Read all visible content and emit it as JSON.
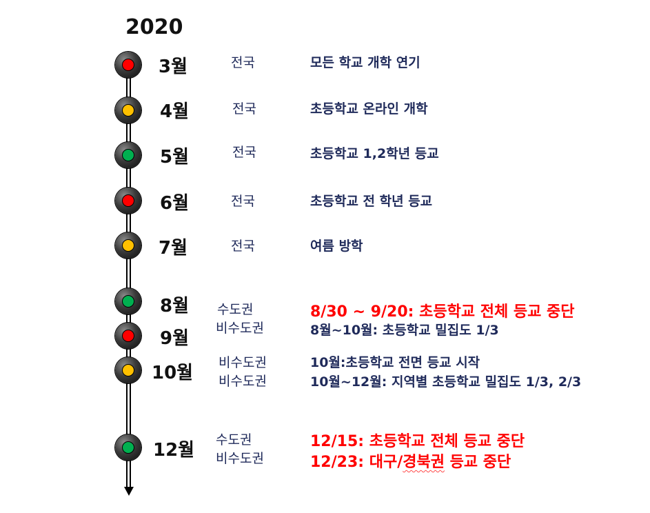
{
  "title": "2020",
  "marker_colors": {
    "red": "#ff0000",
    "yellow": "#ffc000",
    "green": "#00b050"
  },
  "axis": {
    "arrow_icon": "down-arrow-icon"
  },
  "months": [
    {
      "label": "3월",
      "light": "red"
    },
    {
      "label": "4월",
      "light": "yellow"
    },
    {
      "label": "5월",
      "light": "green"
    },
    {
      "label": "6월",
      "light": "red"
    },
    {
      "label": "7월",
      "light": "yellow"
    },
    {
      "label": "8월",
      "light": "green"
    },
    {
      "label": "9월",
      "light": "red"
    },
    {
      "label": "10월",
      "light": "yellow"
    },
    {
      "label": "12월",
      "light": "green"
    }
  ],
  "regions": [
    "전국",
    "전국",
    "전국",
    "전국",
    "전국",
    "수도권",
    "비수도권",
    "비수도권",
    "비수도권",
    "수도권",
    "비수도권"
  ],
  "descriptions": [
    "모든 학교 개학 연기",
    "초등학교 온라인 개학",
    "초등학교 1,2학년 등교",
    "초등학교 전 학년 등교",
    "여름 방학",
    "8/30 ~ 9/20: 초등학교 전체 등교 중단",
    "8월~10월: 초등학교 밀집도 1/3",
    "10월:초등학교 전면 등교 시작",
    "10월~12월: 지역별 초등학교 밀집도 1/3, 2/3",
    "12/15: 초등학교 전체 등교 중단"
  ],
  "last_description": {
    "prefix": "12/23: 대구/",
    "underlined": "경북권",
    "suffix": " 등교 중단"
  },
  "highlight_color": "#ff0000",
  "text_color": "#1f2a5a"
}
